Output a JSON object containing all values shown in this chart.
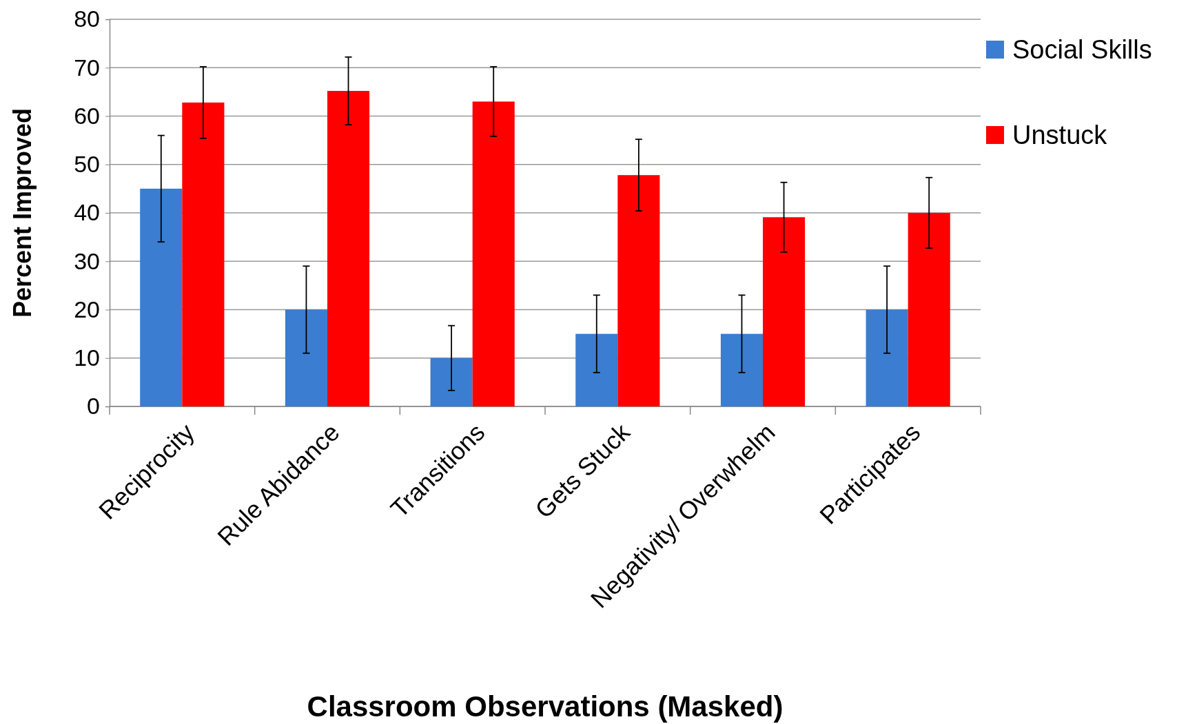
{
  "chart_data": {
    "type": "bar",
    "xlabel": "Classroom Observations (Masked)",
    "ylabel": "Percent Improved",
    "categories": [
      "Reciprocity",
      "Rule Abidance",
      "Transitions",
      "Gets Stuck",
      "Negativity/ Overwhelm",
      "Participates"
    ],
    "series": [
      {
        "name": "Social Skills",
        "color": "#3b7dd0",
        "values": [
          45,
          20,
          10,
          15,
          15,
          20
        ],
        "errors": [
          11,
          9,
          6.7,
          8,
          8,
          9
        ]
      },
      {
        "name": "Unstuck",
        "color": "#ff0000",
        "values": [
          62.8,
          65.2,
          63,
          47.8,
          39.1,
          40
        ],
        "errors": [
          7.4,
          7,
          7.2,
          7.4,
          7.2,
          7.3
        ]
      }
    ],
    "ylim": [
      0,
      80
    ],
    "yticks": [
      0,
      10,
      20,
      30,
      40,
      50,
      60,
      70,
      80
    ],
    "grid": "y",
    "legend": "right"
  }
}
